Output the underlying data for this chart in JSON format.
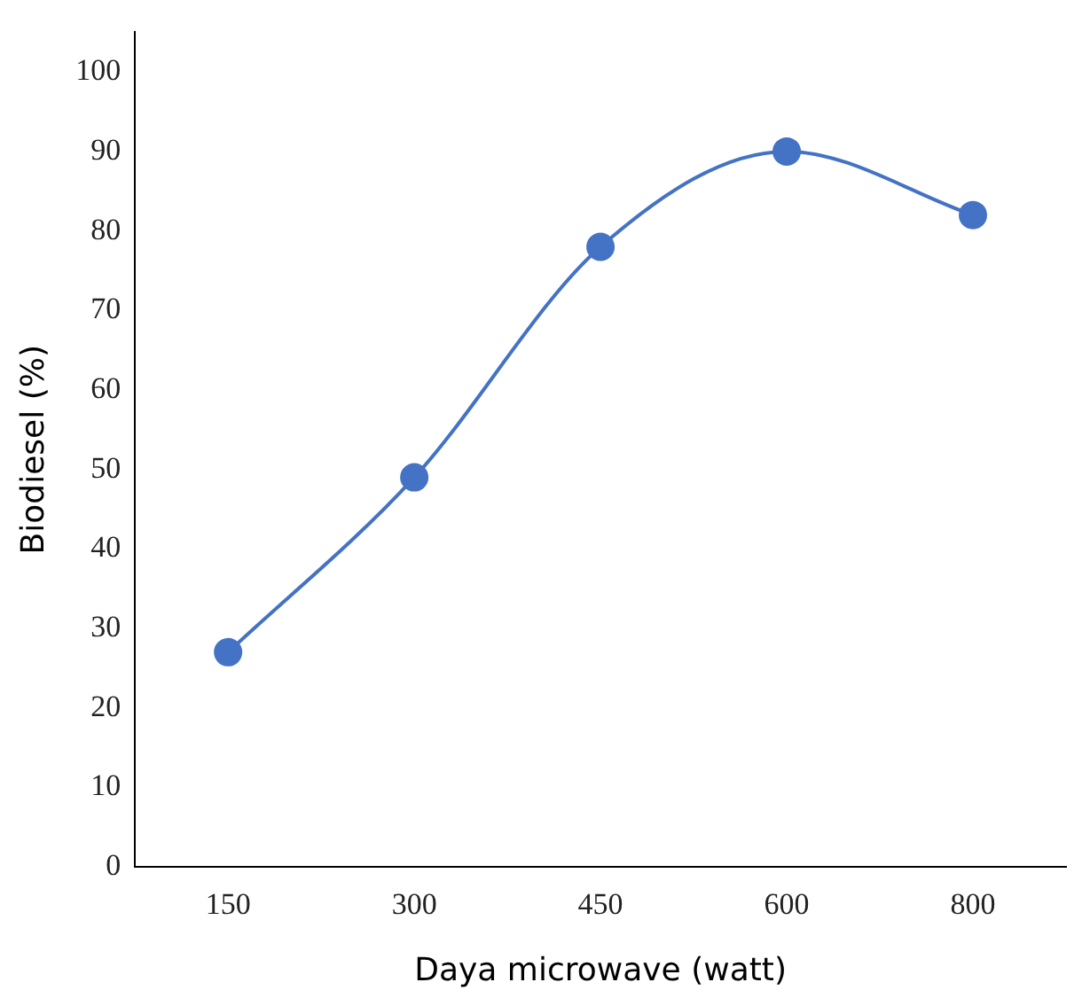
{
  "chart_data": {
    "type": "line",
    "xlabel": "Daya microwave (watt)",
    "ylabel": "Biodiesel (%)",
    "categories": [
      "150",
      "300",
      "450",
      "600",
      "800"
    ],
    "series": [
      {
        "color": "#4472c4",
        "values": [
          27,
          49,
          78,
          90,
          82
        ]
      }
    ],
    "ylim": [
      0,
      105
    ],
    "yticks": [
      0,
      10,
      20,
      30,
      40,
      50,
      60,
      70,
      80,
      90,
      100
    ],
    "grid": false,
    "legend": false,
    "marker": "circle",
    "line_style": "solid"
  }
}
